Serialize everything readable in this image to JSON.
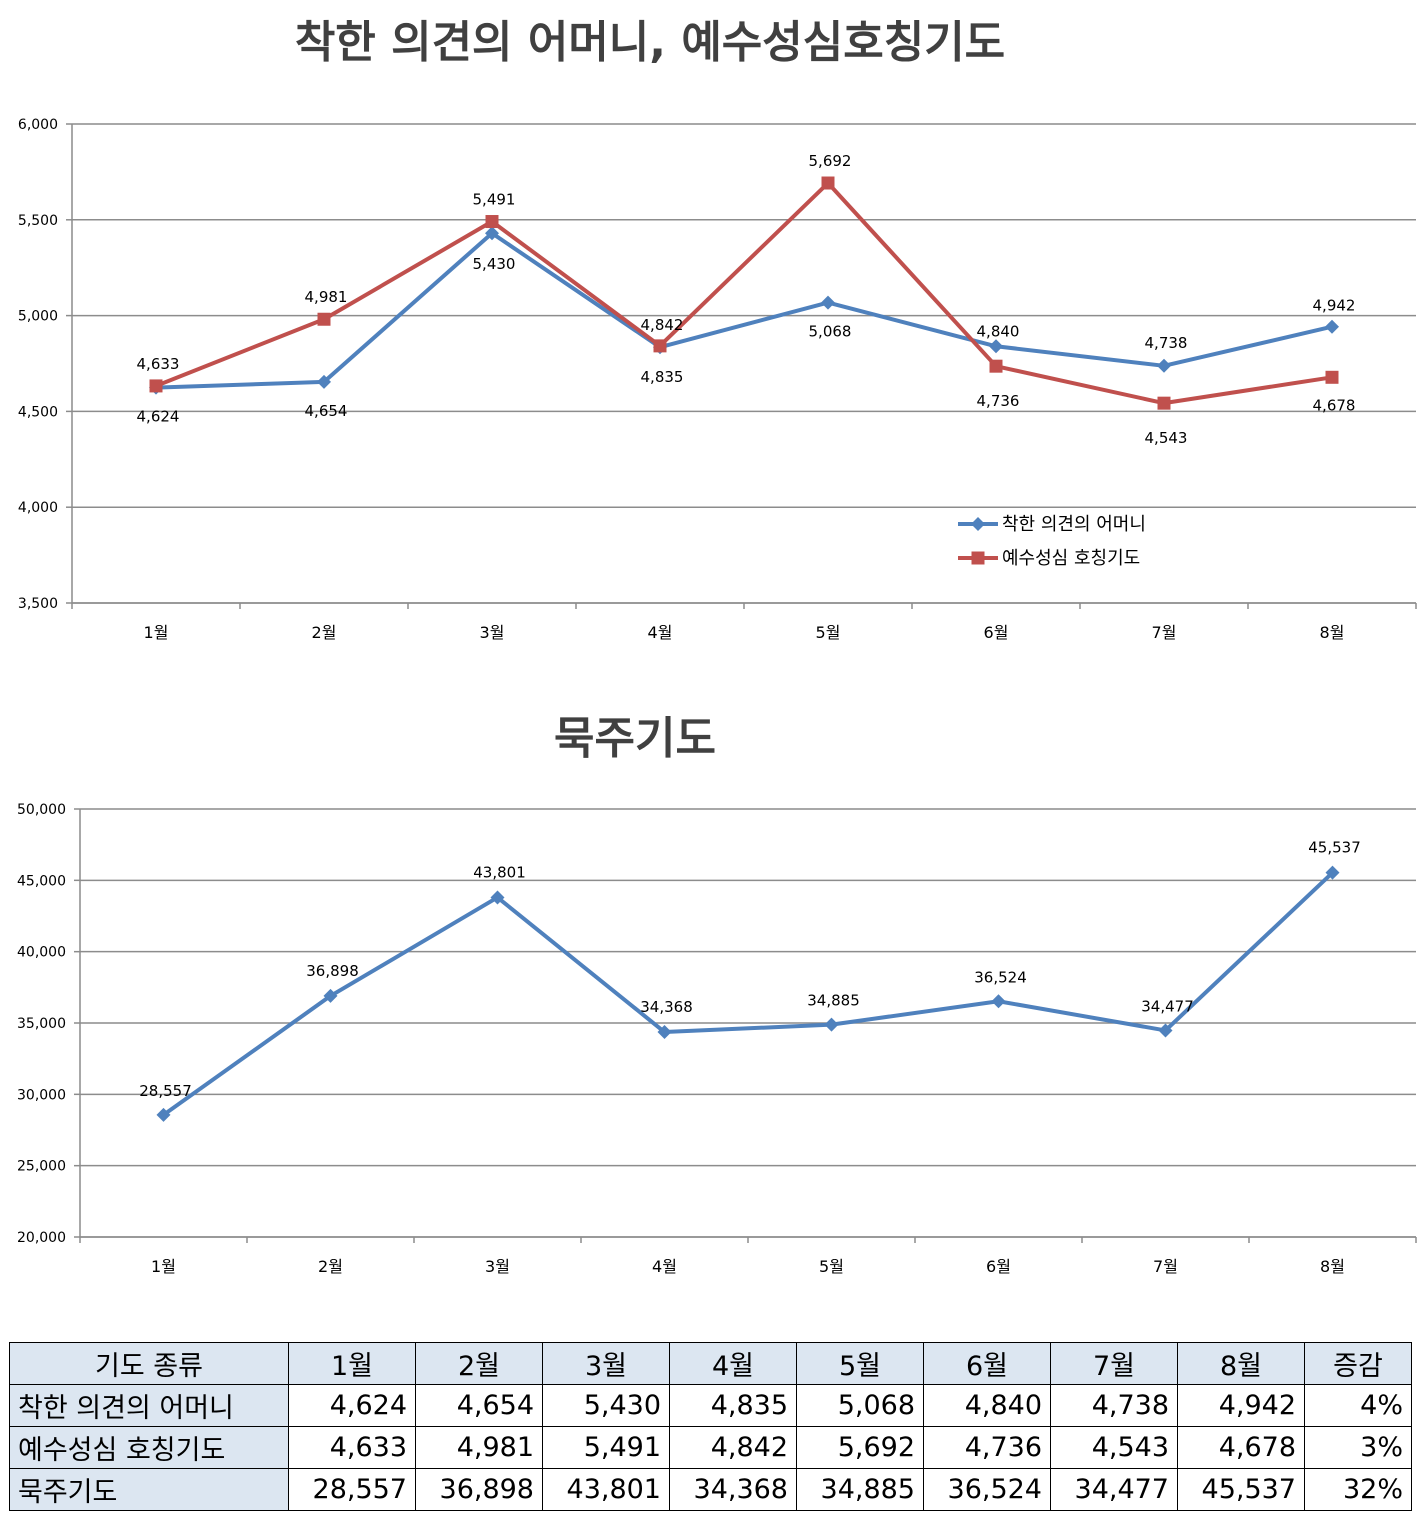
{
  "chart_data": [
    {
      "type": "line",
      "title": "착한 의견의 어머니, 예수성심호칭기도",
      "categories": [
        "1월",
        "2월",
        "3월",
        "4월",
        "5월",
        "6월",
        "7월",
        "8월"
      ],
      "ylim": [
        3500,
        6000
      ],
      "yticks": [
        "6,000",
        "5,500",
        "5,000",
        "4,500",
        "4,000",
        "3,500"
      ],
      "grid": true,
      "legend": "bottom-right",
      "series": [
        {
          "name": "착한 의견의 어머니",
          "color": "#4f81bd",
          "marker": "diamond",
          "values": [
            4624,
            4654,
            5430,
            4835,
            5068,
            4840,
            4738,
            4942
          ],
          "labels": [
            "4,624",
            "4,654",
            "5,430",
            "4,835",
            "5,068",
            "4,840",
            "4,738",
            "4,942"
          ]
        },
        {
          "name": "예수성심 호칭기도",
          "color": "#c0504d",
          "marker": "square",
          "values": [
            4633,
            4981,
            5491,
            4842,
            5692,
            4736,
            4543,
            4678
          ],
          "labels": [
            "4,633",
            "4,981",
            "5,491",
            "4,842",
            "5,692",
            "4,736",
            "4,543",
            "4,678"
          ]
        }
      ]
    },
    {
      "type": "line",
      "title": "묵주기도",
      "categories": [
        "1월",
        "2월",
        "3월",
        "4월",
        "5월",
        "6월",
        "7월",
        "8월"
      ],
      "ylim": [
        20000,
        50000
      ],
      "yticks": [
        "50,000",
        "45,000",
        "40,000",
        "35,000",
        "30,000",
        "25,000",
        "20,000"
      ],
      "grid": true,
      "series": [
        {
          "color": "#4f81bd",
          "marker": "diamond",
          "values": [
            28557,
            36898,
            43801,
            34368,
            34885,
            36524,
            34477,
            45537
          ],
          "labels": [
            "28,557",
            "36,898",
            "43,801",
            "34,368",
            "34,885",
            "36,524",
            "34,477",
            "45,537"
          ]
        }
      ]
    }
  ],
  "table": {
    "header": [
      "기도 종류",
      "1월",
      "2월",
      "3월",
      "4월",
      "5월",
      "6월",
      "7월",
      "8월",
      "증감"
    ],
    "rows": [
      [
        "착한 의견의 어머니",
        "4,624",
        "4,654",
        "5,430",
        "4,835",
        "5,068",
        "4,840",
        "4,738",
        "4,942",
        "4%"
      ],
      [
        "예수성심 호칭기도",
        "4,633",
        "4,981",
        "5,491",
        "4,842",
        "5,692",
        "4,736",
        "4,543",
        "4,678",
        "3%"
      ],
      [
        "묵주기도",
        "28,557",
        "36,898",
        "43,801",
        "34,368",
        "34,885",
        "36,524",
        "34,477",
        "45,537",
        "32%"
      ]
    ]
  }
}
